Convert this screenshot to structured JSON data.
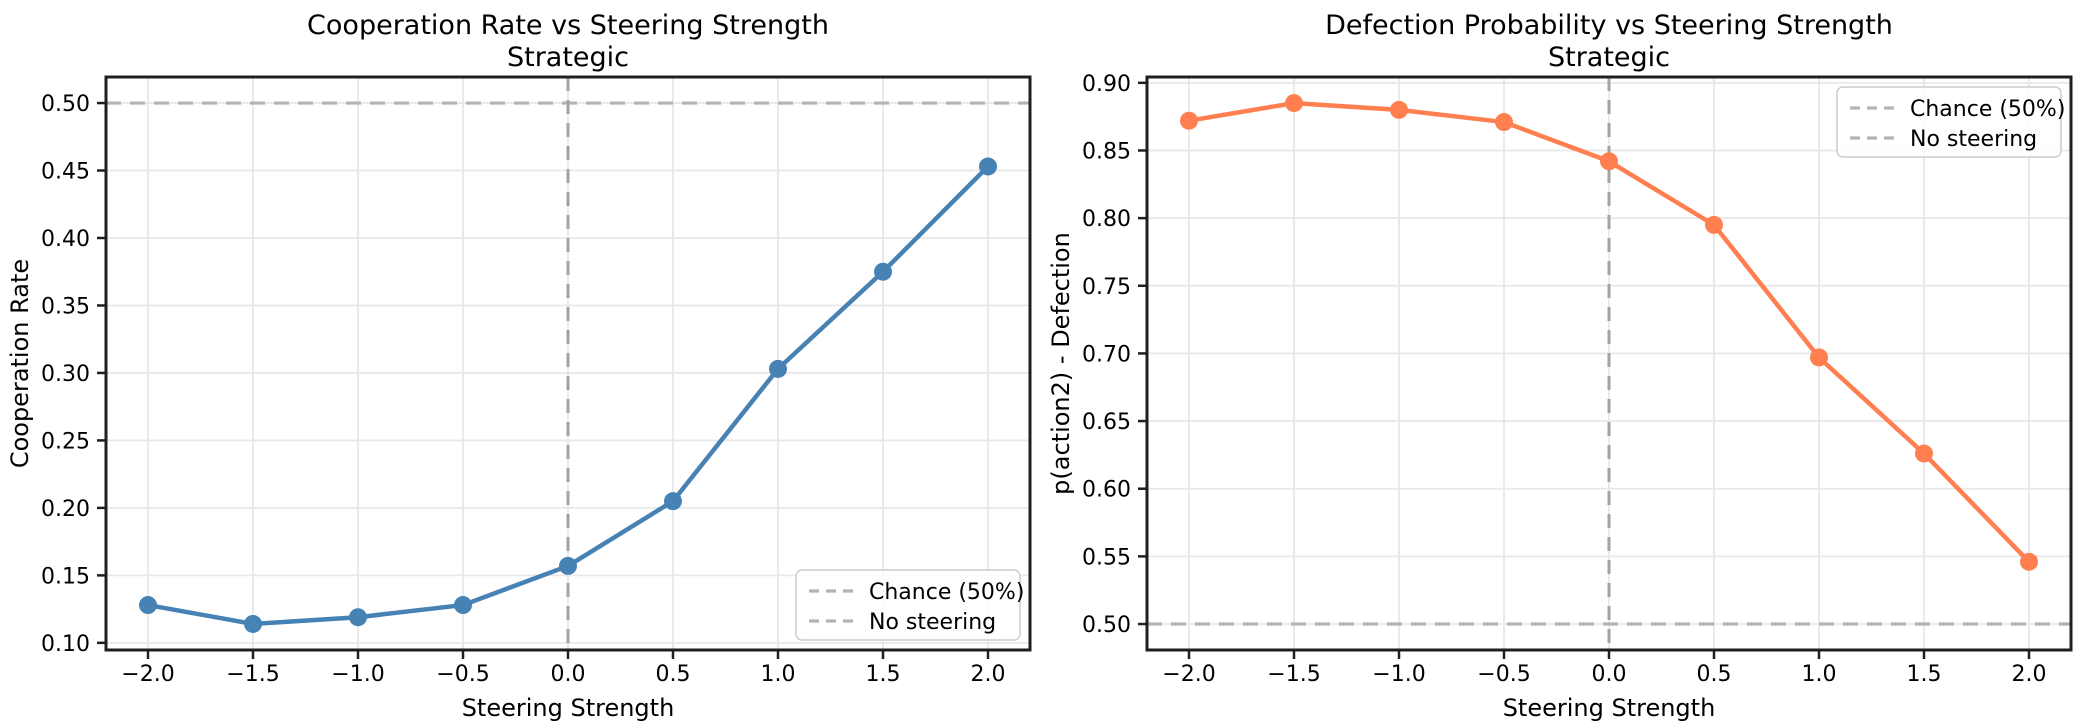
{
  "figure": {
    "background": "#ffffff"
  },
  "style": {
    "grid_color": "#e8e8e8",
    "spine_color": "#1f1f1f",
    "tick_color": "#1f1f1f",
    "text_color": "#000000",
    "chance_line_color": "#b3b3b3",
    "no_steering_line_color": "#a3a3a3",
    "legend_border_color": "#cccccc",
    "legend_background": "#ffffff",
    "cooperation_series_color": "#4682B4",
    "defection_series_color": "#FF7F50"
  },
  "chart_data": [
    {
      "type": "line",
      "title": "Cooperation Rate vs Steering Strength",
      "subtitle": "Strategic",
      "xlabel": "Steering Strength",
      "ylabel": "Cooperation Rate",
      "series_name": "cooperation-rate",
      "color": "#4682B4",
      "x": [
        -2.0,
        -1.5,
        -1.0,
        -0.5,
        0.0,
        0.5,
        1.0,
        1.5,
        2.0
      ],
      "y": [
        0.128,
        0.114,
        0.119,
        0.128,
        0.157,
        0.205,
        0.303,
        0.375,
        0.453
      ],
      "xlim": [
        -2.2,
        2.2
      ],
      "ylim": [
        0.0947,
        0.5193
      ],
      "grid": true,
      "xticks": [
        {
          "v": -2.0,
          "label": "−2.0"
        },
        {
          "v": -1.5,
          "label": "−1.5"
        },
        {
          "v": -1.0,
          "label": "−1.0"
        },
        {
          "v": -0.5,
          "label": "−0.5"
        },
        {
          "v": 0.0,
          "label": "0.0"
        },
        {
          "v": 0.5,
          "label": "0.5"
        },
        {
          "v": 1.0,
          "label": "1.0"
        },
        {
          "v": 1.5,
          "label": "1.5"
        },
        {
          "v": 2.0,
          "label": "2.0"
        }
      ],
      "yticks": [
        {
          "v": 0.1,
          "label": "0.10"
        },
        {
          "v": 0.15,
          "label": "0.15"
        },
        {
          "v": 0.2,
          "label": "0.20"
        },
        {
          "v": 0.25,
          "label": "0.25"
        },
        {
          "v": 0.3,
          "label": "0.30"
        },
        {
          "v": 0.35,
          "label": "0.35"
        },
        {
          "v": 0.4,
          "label": "0.40"
        },
        {
          "v": 0.45,
          "label": "0.45"
        },
        {
          "v": 0.5,
          "label": "0.50"
        }
      ],
      "chance_line": {
        "value": 0.5,
        "label": "Chance (50%)"
      },
      "no_steering_line": {
        "value": 0.0,
        "label": "No steering"
      },
      "legend": {
        "position": "lower-right",
        "entries": [
          {
            "label": "Chance (50%)",
            "line_style": "dashed"
          },
          {
            "label": "No steering",
            "line_style": "dashed"
          }
        ]
      }
    },
    {
      "type": "line",
      "title": "Defection Probability vs Steering Strength",
      "subtitle": "Strategic",
      "xlabel": "Steering Strength",
      "ylabel": "p(action2) - Defection",
      "series_name": "defection-probability",
      "color": "#FF7F50",
      "x": [
        -2.0,
        -1.5,
        -1.0,
        -0.5,
        0.0,
        0.5,
        1.0,
        1.5,
        2.0
      ],
      "y": [
        0.872,
        0.885,
        0.88,
        0.871,
        0.842,
        0.795,
        0.697,
        0.626,
        0.546
      ],
      "xlim": [
        -2.2,
        2.2
      ],
      "ylim": [
        0.4808,
        0.9043
      ],
      "grid": true,
      "xticks": [
        {
          "v": -2.0,
          "label": "−2.0"
        },
        {
          "v": -1.5,
          "label": "−1.5"
        },
        {
          "v": -1.0,
          "label": "−1.0"
        },
        {
          "v": -0.5,
          "label": "−0.5"
        },
        {
          "v": 0.0,
          "label": "0.0"
        },
        {
          "v": 0.5,
          "label": "0.5"
        },
        {
          "v": 1.0,
          "label": "1.0"
        },
        {
          "v": 1.5,
          "label": "1.5"
        },
        {
          "v": 2.0,
          "label": "2.0"
        }
      ],
      "yticks": [
        {
          "v": 0.5,
          "label": "0.50"
        },
        {
          "v": 0.55,
          "label": "0.55"
        },
        {
          "v": 0.6,
          "label": "0.60"
        },
        {
          "v": 0.65,
          "label": "0.65"
        },
        {
          "v": 0.7,
          "label": "0.70"
        },
        {
          "v": 0.75,
          "label": "0.75"
        },
        {
          "v": 0.8,
          "label": "0.80"
        },
        {
          "v": 0.85,
          "label": "0.85"
        },
        {
          "v": 0.9,
          "label": "0.90"
        }
      ],
      "chance_line": {
        "value": 0.5,
        "label": "Chance (50%)"
      },
      "no_steering_line": {
        "value": 0.0,
        "label": "No steering"
      },
      "legend": {
        "position": "upper-right",
        "entries": [
          {
            "label": "Chance (50%)",
            "line_style": "dashed"
          },
          {
            "label": "No steering",
            "line_style": "dashed"
          }
        ]
      }
    }
  ]
}
